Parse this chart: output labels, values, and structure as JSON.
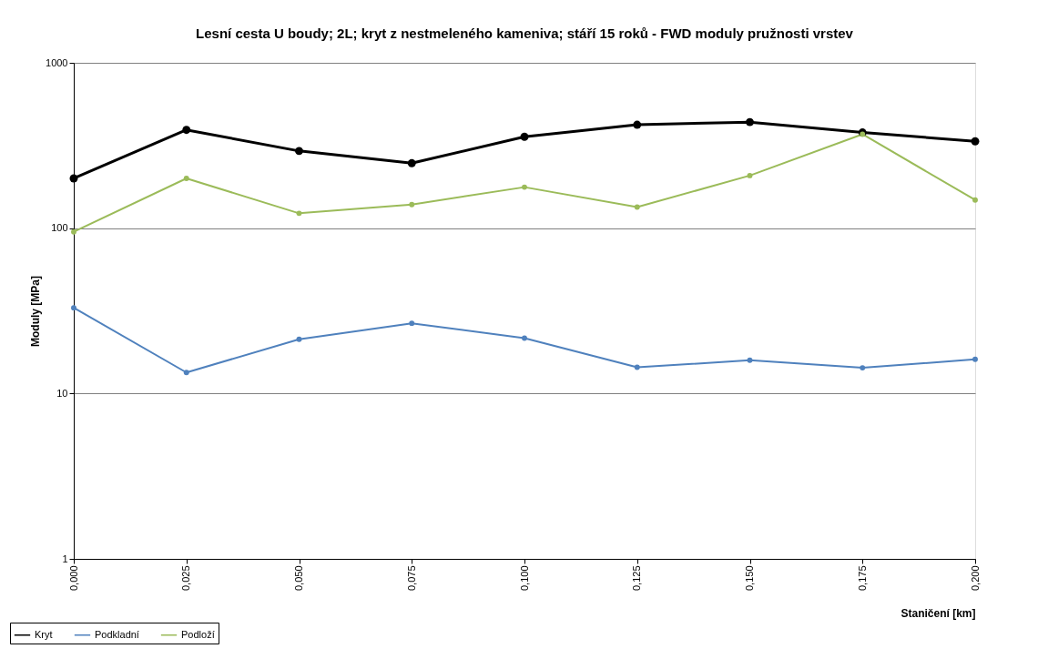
{
  "chart_data": {
    "type": "line",
    "title": "Lesní cesta U boudy;  2L; kryt z nestmeleného kameniva; stáří 15 roků - FWD moduly pružnosti vrstev",
    "xlabel": "Staničení [km]",
    "ylabel": "Moduly [MPa]",
    "categories": [
      "0,000",
      "0,025",
      "0,050",
      "0,075",
      "0,100",
      "0,125",
      "0,150",
      "0,175",
      "0,200"
    ],
    "series": [
      {
        "name": "Kryt",
        "color": "#000000",
        "values": [
          200,
          393,
          293,
          247,
          357,
          422,
          438,
          379,
          335
        ]
      },
      {
        "name": "Podkladní",
        "color": "#4f81bd",
        "values": [
          33,
          13.4,
          21.3,
          26.6,
          21.6,
          14.4,
          15.9,
          14.3,
          16.1
        ]
      },
      {
        "name": "Podloží",
        "color": "#9bbb59",
        "values": [
          95,
          200,
          123,
          139,
          177,
          134,
          208,
          370,
          148
        ]
      }
    ],
    "log": true,
    "ylim": [
      1,
      1000
    ],
    "yticks": [
      1,
      10,
      100,
      1000
    ],
    "grid": "y",
    "legend": "bottom left",
    "marker": "circle",
    "line_style": "solid"
  }
}
